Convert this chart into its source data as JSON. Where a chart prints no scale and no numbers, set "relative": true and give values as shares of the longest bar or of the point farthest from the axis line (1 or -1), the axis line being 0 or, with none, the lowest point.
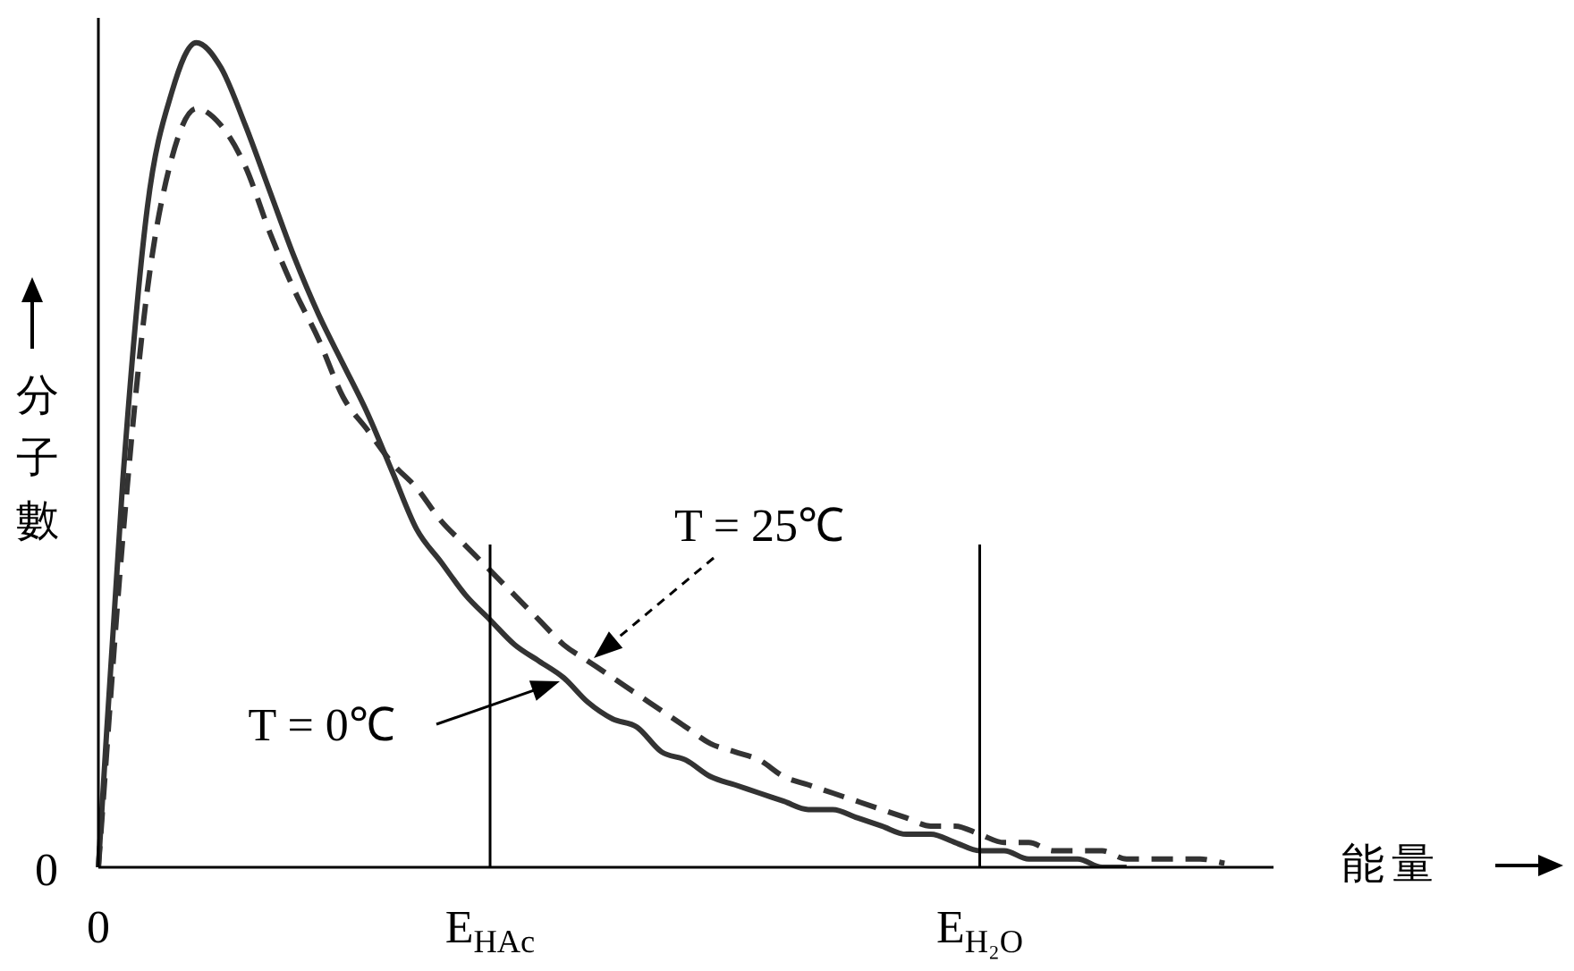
{
  "chart_data": {
    "type": "line",
    "relative": true,
    "xlabel": "能量",
    "ylabel": "分子數",
    "marker": "none",
    "categories": [
      "0",
      null,
      null,
      null,
      null,
      null,
      null,
      null,
      null,
      null,
      null,
      null,
      null,
      null,
      null,
      null,
      "E$_{HAc}$",
      null,
      null,
      null,
      null,
      null,
      null,
      null,
      null,
      null,
      null,
      null,
      null,
      null,
      null,
      null,
      null,
      null,
      null,
      null,
      "E$_{H₂O}$",
      null,
      null,
      null,
      null,
      null,
      null,
      null,
      null,
      null,
      null,
      null,
      null
    ],
    "ref_lines": [
      {
        "axis": "x",
        "value": "E$_{HAc}$",
        "color": "#000000"
      },
      {
        "axis": "x",
        "value": "E$_{H₂O}$",
        "color": "#000000"
      }
    ],
    "annotations": [
      "0"
    ],
    "series": [
      {
        "name": "T = 0℃",
        "color": "#333333",
        "line_style": "solid",
        "values": [
          0,
          0.47,
          0.8,
          0.94,
          1,
          0.97,
          0.9,
          0.82,
          0.74,
          0.67,
          0.61,
          0.55,
          0.48,
          0.41,
          0.37,
          0.33,
          0.3,
          0.27,
          0.25,
          0.23,
          0.2,
          0.18,
          0.17,
          0.14,
          0.13,
          0.11,
          0.1,
          0.09,
          0.08,
          0.07,
          0.07,
          0.06,
          0.05,
          0.04,
          0.04,
          0.03,
          0.02,
          0.02,
          0.01,
          0.01,
          0.01,
          0,
          0,
          null,
          null,
          null,
          null,
          null,
          null
        ]
      },
      {
        "name": "T = 25℃",
        "color": "#333333",
        "line_style": "dashed",
        "values": [
          0,
          0.4,
          0.7,
          0.86,
          0.92,
          0.9,
          0.85,
          0.77,
          0.7,
          0.64,
          0.57,
          0.53,
          0.49,
          0.46,
          0.42,
          0.39,
          0.36,
          0.33,
          0.3,
          0.27,
          0.25,
          0.23,
          0.21,
          0.19,
          0.17,
          0.15,
          0.14,
          0.13,
          0.11,
          0.1,
          0.09,
          0.08,
          0.07,
          0.06,
          0.05,
          0.05,
          0.04,
          0.03,
          0.03,
          0.02,
          0.02,
          0.02,
          0.01,
          0.01,
          0.01,
          0.01,
          0.005,
          null,
          null
        ]
      }
    ]
  }
}
